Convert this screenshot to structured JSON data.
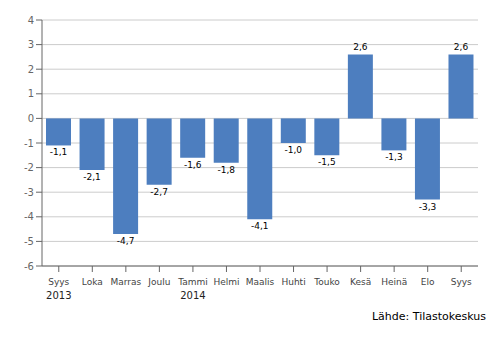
{
  "chart_data": {
    "type": "bar",
    "categories": [
      "Syys",
      "Loka",
      "Marras",
      "Joulu",
      "Tammi",
      "Helmi",
      "Maalis",
      "Huhti",
      "Touko",
      "Kesä",
      "Heinä",
      "Elo",
      "Syys"
    ],
    "years": [
      "2013",
      null,
      null,
      null,
      "2014",
      null,
      null,
      null,
      null,
      null,
      null,
      null,
      null
    ],
    "values": [
      -1.1,
      -2.1,
      -4.7,
      -2.7,
      -1.6,
      -1.8,
      -4.1,
      -1.0,
      -1.5,
      2.6,
      -1.3,
      -3.3,
      2.6
    ],
    "value_labels": [
      "-1,1",
      "-2,1",
      "-4,7",
      "-2,7",
      "-1,6",
      "-1,8",
      "-4,1",
      "-1,0",
      "-1,5",
      "2,6",
      "-1,3",
      "-3,3",
      "2,6"
    ],
    "data_labels": true,
    "color": "#4d7ebf",
    "ylim": [
      -6,
      4
    ],
    "yticks": [
      -6,
      -5,
      -4,
      -3,
      -2,
      -1,
      0,
      1,
      2,
      3,
      4
    ],
    "grid": true,
    "source": "Lähde: Tilastokeskus"
  }
}
